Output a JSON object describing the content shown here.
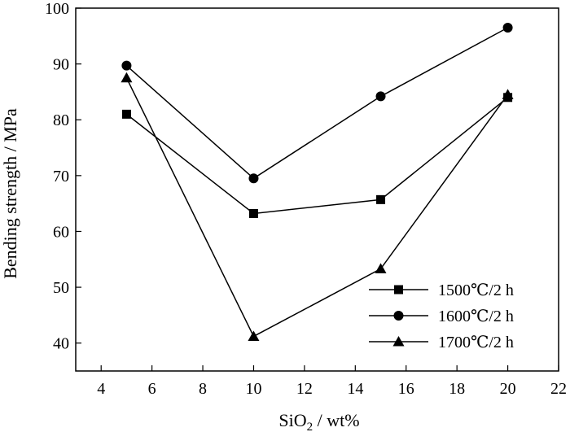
{
  "chart_data": {
    "type": "line",
    "x": [
      5,
      10,
      15,
      20
    ],
    "series": [
      {
        "name": "1500℃/2 h",
        "marker": "square",
        "values": [
          81,
          63.2,
          65.7,
          84
        ]
      },
      {
        "name": "1600℃/2 h",
        "marker": "circle",
        "values": [
          89.7,
          69.5,
          84.2,
          96.5
        ]
      },
      {
        "name": "1700℃/2 h",
        "marker": "triangle",
        "values": [
          87.5,
          41.2,
          53.3,
          84.5
        ]
      }
    ],
    "xlabel_main": "SiO",
    "xlabel_sub": "2",
    "xlabel_rest": " / wt%",
    "ylabel": "Bending strength / MPa",
    "xlim": [
      3,
      22
    ],
    "ylim": [
      35,
      100
    ],
    "xticks": [
      4,
      6,
      8,
      10,
      12,
      14,
      16,
      18,
      20,
      22
    ],
    "yticks": [
      40,
      50,
      60,
      70,
      80,
      90,
      100
    ],
    "grid": false,
    "legend_position": "bottom-right",
    "color": "#000000"
  }
}
